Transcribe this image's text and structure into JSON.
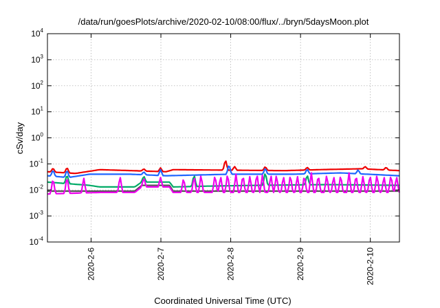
{
  "chart_data": {
    "type": "line",
    "title": "/data/run/goesPlots/archive/2020-02-10/08:00/flux/../bryn/5daysMoon.plot",
    "xlabel": "Coordinated Universal Time (UTC)",
    "ylabel": "cSv/day",
    "yscale": "log",
    "ylim": [
      0.0001,
      10000
    ],
    "xlim": [
      "2020-02-05 09:00",
      "2020-02-10 10:00"
    ],
    "grid": true,
    "legend": "none",
    "y_ticks": [
      {
        "base": "10",
        "exp": "-4",
        "value": 0.0001
      },
      {
        "base": "10",
        "exp": "-3",
        "value": 0.001
      },
      {
        "base": "10",
        "exp": "-2",
        "value": 0.01
      },
      {
        "base": "10",
        "exp": "-1",
        "value": 0.1
      },
      {
        "base": "10",
        "exp": "0",
        "value": 1
      },
      {
        "base": "10",
        "exp": "1",
        "value": 10
      },
      {
        "base": "10",
        "exp": "2",
        "value": 100
      },
      {
        "base": "10",
        "exp": "3",
        "value": 1000
      },
      {
        "base": "10",
        "exp": "4",
        "value": 10000
      }
    ],
    "x_ticks": [
      {
        "label": "2020-2-6",
        "value": "2020-02-06 00:00"
      },
      {
        "label": "2020-2-7",
        "value": "2020-02-07 00:00"
      },
      {
        "label": "2020-2-8",
        "value": "2020-02-08 00:00"
      },
      {
        "label": "2020-2-9",
        "value": "2020-02-09 00:00"
      },
      {
        "label": "2020-2-10",
        "value": "2020-02-10 00:00"
      }
    ],
    "series": [
      {
        "color": "#ee0000",
        "baseline": [
          [
            0,
            0.05
          ],
          [
            0.4,
            0.043
          ],
          [
            0.75,
            0.06
          ],
          [
            1.7,
            0.05
          ],
          [
            1.8,
            0.06
          ],
          [
            3.4,
            0.055
          ],
          [
            3.9,
            0.06
          ],
          [
            4.5,
            0.065
          ],
          [
            5.04,
            0.055
          ]
        ],
        "spikes": [
          [
            0.08,
            0.07
          ],
          [
            0.28,
            0.075
          ],
          [
            1.38,
            0.065
          ],
          [
            1.62,
            0.07
          ],
          [
            2.55,
            0.15
          ],
          [
            2.68,
            0.08
          ],
          [
            3.12,
            0.08
          ],
          [
            3.72,
            0.075
          ],
          [
            4.55,
            0.08
          ],
          [
            4.85,
            0.075
          ]
        ]
      },
      {
        "color": "#1f66ff",
        "baseline": [
          [
            0,
            0.035
          ],
          [
            0.3,
            0.03
          ],
          [
            0.6,
            0.04
          ],
          [
            1.2,
            0.04
          ],
          [
            1.7,
            0.035
          ],
          [
            2.6,
            0.04
          ],
          [
            3.5,
            0.04
          ],
          [
            4.2,
            0.045
          ],
          [
            5.04,
            0.035
          ]
        ],
        "spikes": [
          [
            0.08,
            0.06
          ],
          [
            0.28,
            0.06
          ],
          [
            1.38,
            0.05
          ],
          [
            1.62,
            0.06
          ],
          [
            2.6,
            0.1
          ],
          [
            3.12,
            0.07
          ],
          [
            3.72,
            0.065
          ],
          [
            4.45,
            0.06
          ]
        ]
      },
      {
        "color": "#00aa66",
        "baseline": [
          [
            0,
            0.02
          ],
          [
            0.6,
            0.015
          ],
          [
            0.75,
            0.013
          ],
          [
            1.25,
            0.013
          ],
          [
            1.35,
            0.02
          ],
          [
            1.75,
            0.02
          ],
          [
            1.8,
            0.013
          ],
          [
            2.3,
            0.014
          ],
          [
            3.0,
            0.015
          ],
          [
            4.0,
            0.016
          ],
          [
            5.04,
            0.015
          ]
        ],
        "spikes": [
          [
            0.28,
            0.04
          ],
          [
            1.38,
            0.035
          ],
          [
            2.1,
            0.04
          ],
          [
            3.12,
            0.05
          ],
          [
            3.72,
            0.04
          ]
        ]
      },
      {
        "color": "#555555",
        "baseline": [
          [
            0,
            0.009
          ],
          [
            0.75,
            0.009
          ],
          [
            1.25,
            0.009
          ],
          [
            1.35,
            0.015
          ],
          [
            1.75,
            0.015
          ],
          [
            1.8,
            0.009
          ],
          [
            5.04,
            0.009
          ]
        ],
        "spikes": []
      },
      {
        "color": "#ee00ee",
        "baseline": [
          [
            0,
            0.007
          ],
          [
            0.75,
            0.008
          ],
          [
            1.25,
            0.008
          ],
          [
            1.35,
            0.013
          ],
          [
            1.75,
            0.013
          ],
          [
            1.8,
            0.008
          ],
          [
            5.04,
            0.008
          ]
        ],
        "spikes": [
          [
            0.08,
            0.03
          ],
          [
            0.28,
            0.035
          ],
          [
            0.52,
            0.03
          ],
          [
            1.04,
            0.035
          ],
          [
            1.38,
            0.03
          ],
          [
            1.62,
            0.03
          ],
          [
            1.95,
            0.03
          ],
          [
            2.1,
            0.035
          ],
          [
            2.2,
            0.04
          ],
          [
            2.4,
            0.04
          ],
          [
            2.48,
            0.035
          ],
          [
            2.58,
            0.045
          ],
          [
            2.7,
            0.04
          ],
          [
            2.8,
            0.04
          ],
          [
            2.9,
            0.035
          ],
          [
            3.0,
            0.045
          ],
          [
            3.08,
            0.04
          ],
          [
            3.2,
            0.04
          ],
          [
            3.28,
            0.04
          ],
          [
            3.38,
            0.035
          ],
          [
            3.48,
            0.04
          ],
          [
            3.58,
            0.035
          ],
          [
            3.68,
            0.04
          ],
          [
            3.78,
            0.045
          ],
          [
            3.88,
            0.04
          ],
          [
            4.0,
            0.04
          ],
          [
            4.1,
            0.035
          ],
          [
            4.2,
            0.04
          ],
          [
            4.32,
            0.045
          ],
          [
            4.42,
            0.04
          ],
          [
            4.52,
            0.035
          ],
          [
            4.62,
            0.04
          ],
          [
            4.72,
            0.04
          ],
          [
            4.82,
            0.035
          ],
          [
            4.92,
            0.04
          ],
          [
            5.0,
            0.035
          ]
        ]
      }
    ]
  }
}
